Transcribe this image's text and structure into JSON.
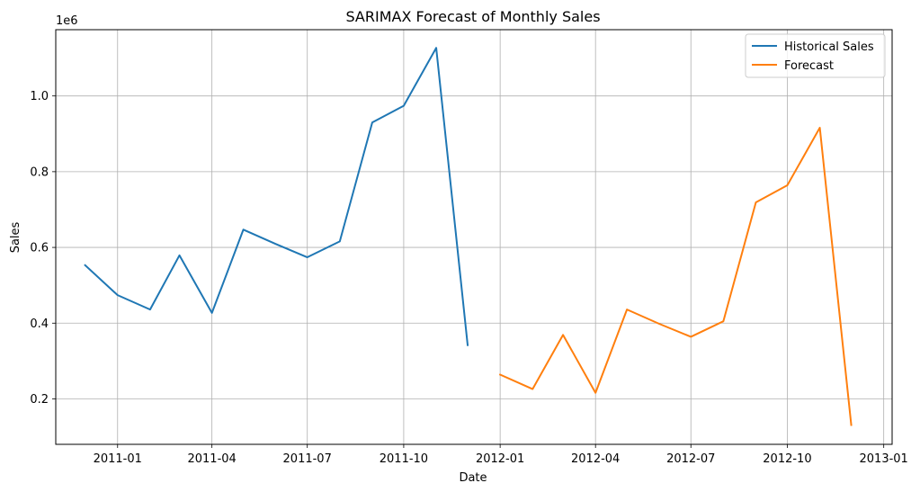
{
  "chart_data": {
    "type": "line",
    "title": "SARIMAX Forecast of Monthly Sales",
    "xlabel": "Date",
    "ylabel": "Sales",
    "y_offset_text": "1e6",
    "grid": true,
    "legend_position": "top-right",
    "x_tick_labels": [
      "2011-01",
      "2011-04",
      "2011-07",
      "2011-10",
      "2012-01",
      "2012-04",
      "2012-07",
      "2012-10",
      "2013-01"
    ],
    "x_ticks": [
      "2011-01-01",
      "2011-04-01",
      "2011-07-01",
      "2011-10-01",
      "2012-01-01",
      "2012-04-01",
      "2012-07-01",
      "2012-10-01",
      "2013-01-01"
    ],
    "xlim": [
      "2010-11-03",
      "2013-01-09"
    ],
    "y_tick_labels": [
      "0.2",
      "0.4",
      "0.6",
      "0.8",
      "1.0"
    ],
    "y_ticks": [
      0.2,
      0.4,
      0.6,
      0.8,
      1.0
    ],
    "ylim": [
      0.08,
      1.175
    ],
    "series": [
      {
        "name": "Historical Sales",
        "color": "#1f77b4",
        "x": [
          "2010-12-01",
          "2011-01-01",
          "2011-02-01",
          "2011-03-01",
          "2011-04-01",
          "2011-05-01",
          "2011-06-01",
          "2011-07-01",
          "2011-08-01",
          "2011-09-01",
          "2011-10-01",
          "2011-11-01",
          "2011-12-01"
        ],
        "y": [
          0.553,
          0.474,
          0.436,
          0.579,
          0.427,
          0.647,
          0.609,
          0.574,
          0.616,
          0.93,
          0.974,
          1.127,
          0.342
        ]
      },
      {
        "name": "Forecast",
        "color": "#ff7f0e",
        "x": [
          "2012-01-01",
          "2012-02-01",
          "2012-03-01",
          "2012-04-01",
          "2012-05-01",
          "2012-06-01",
          "2012-07-01",
          "2012-08-01",
          "2012-09-01",
          "2012-10-01",
          "2012-11-01",
          "2012-12-01"
        ],
        "y": [
          0.264,
          0.226,
          0.369,
          0.216,
          0.436,
          0.398,
          0.364,
          0.405,
          0.719,
          0.764,
          0.916,
          0.131
        ]
      }
    ]
  }
}
